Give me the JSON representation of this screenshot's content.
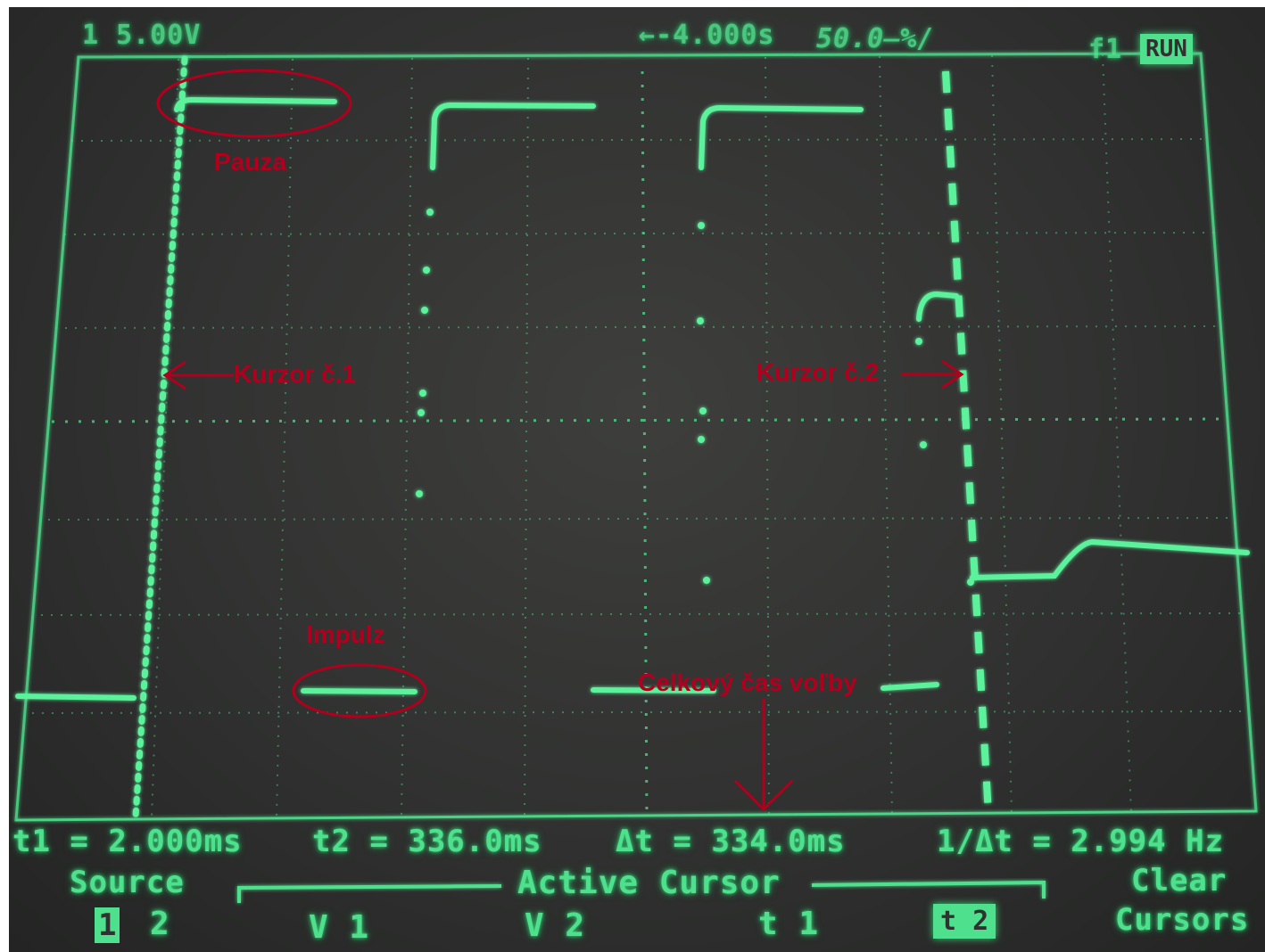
{
  "status_bar": {
    "ch1_scale": "1 5.00V",
    "time_offset": "←-4.000s",
    "time_scale": "50.0̶%/",
    "trigger": "f1",
    "run_state": "RUN"
  },
  "measurements": {
    "t1": "t1 = 2.000ms",
    "t2": "t2 = 336.0ms",
    "delta_t": "Δt = 334.0ms",
    "inv_delta_t": "1/Δt = 2.994 Hz"
  },
  "softkeys": {
    "source_label": "Source",
    "source_ch1": "1",
    "source_ch2": "2",
    "active_cursor_label": "Active Cursor",
    "v1": "V 1",
    "v2": "V 2",
    "t1": "t 1",
    "t2": "t 2",
    "clear_label": "Clear",
    "cursors_label": "Cursors"
  },
  "annotations": {
    "pauza": "Pauza",
    "impulz": "Impulz",
    "kurzor1": "Kurzor č.1",
    "kurzor2": "Kurzor č.2",
    "celkovy": "Celkový čas voľby"
  },
  "colors": {
    "trace": "#4fe08d",
    "annotation": "#b0001e",
    "screen_bg": "#303130"
  }
}
